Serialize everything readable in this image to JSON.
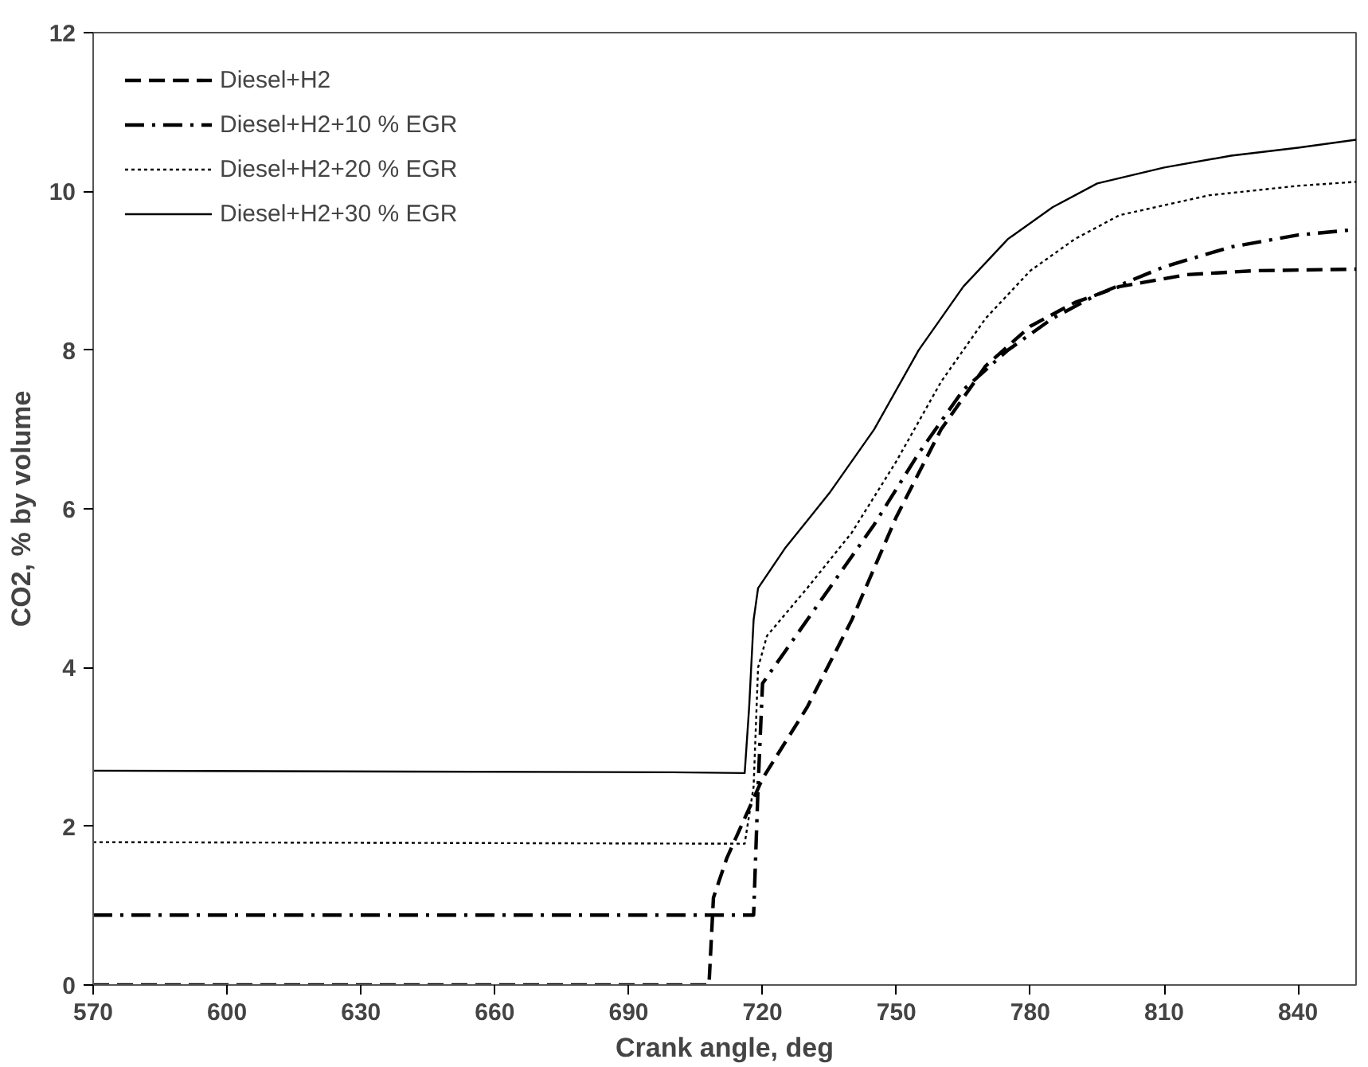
{
  "chart_data": {
    "type": "line",
    "xlabel": "Crank angle, deg",
    "ylabel": "CO2, % by volume",
    "xlim": [
      570,
      853
    ],
    "ylim": [
      0,
      12
    ],
    "xticks": [
      570,
      600,
      630,
      660,
      690,
      720,
      750,
      780,
      810,
      840
    ],
    "yticks": [
      0,
      2,
      4,
      6,
      8,
      10,
      12
    ],
    "grid": false,
    "legend": "top left",
    "marker": "none",
    "series": [
      {
        "name": "Diesel+H2",
        "color": "#000000",
        "line_style": "dashed",
        "x": [
          570,
          708,
          709,
          712,
          716,
          720,
          730,
          740,
          750,
          760,
          770,
          780,
          790,
          800,
          815,
          830,
          853
        ],
        "values": [
          0,
          0,
          1.1,
          1.6,
          2.1,
          2.6,
          3.5,
          4.6,
          5.9,
          7.0,
          7.8,
          8.3,
          8.6,
          8.8,
          8.95,
          9.0,
          9.02
        ]
      },
      {
        "name": "Diesel+H2+10 % EGR",
        "color": "#000000",
        "line_style": "dashdot",
        "x": [
          570,
          718,
          719,
          720,
          725,
          735,
          745,
          755,
          765,
          775,
          785,
          795,
          810,
          825,
          840,
          853
        ],
        "values": [
          0.88,
          0.88,
          2.5,
          3.8,
          4.2,
          5.0,
          5.8,
          6.7,
          7.5,
          8.0,
          8.4,
          8.7,
          9.05,
          9.3,
          9.45,
          9.52
        ]
      },
      {
        "name": "Diesel+H2+20 % EGR",
        "color": "#000000",
        "line_style": "dotted",
        "x": [
          570,
          716,
          718,
          719,
          721,
          730,
          740,
          750,
          760,
          770,
          780,
          790,
          800,
          820,
          840,
          853
        ],
        "values": [
          1.8,
          1.78,
          2.5,
          4.0,
          4.4,
          5.0,
          5.7,
          6.6,
          7.6,
          8.4,
          9.0,
          9.4,
          9.7,
          9.95,
          10.07,
          10.12
        ]
      },
      {
        "name": "Diesel+H2+30 % EGR",
        "color": "#000000",
        "line_style": "solid",
        "x": [
          570,
          700,
          716,
          717,
          718,
          719,
          725,
          735,
          745,
          755,
          765,
          775,
          785,
          795,
          810,
          825,
          840,
          853
        ],
        "values": [
          2.7,
          2.68,
          2.67,
          3.5,
          4.6,
          5.0,
          5.5,
          6.2,
          7.0,
          8.0,
          8.8,
          9.4,
          9.8,
          10.1,
          10.3,
          10.45,
          10.55,
          10.65
        ]
      }
    ]
  }
}
